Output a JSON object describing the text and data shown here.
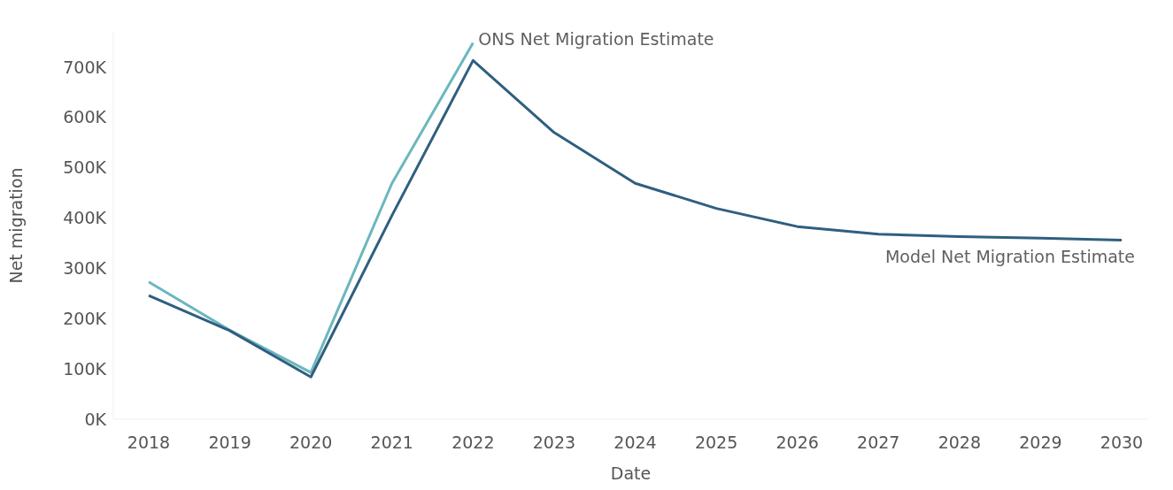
{
  "chart_data": {
    "type": "line",
    "xlabel": "Date",
    "ylabel": "Net migration",
    "categories": [
      "2018",
      "2019",
      "2020",
      "2021",
      "2022",
      "2023",
      "2024",
      "2025",
      "2026",
      "2027",
      "2028",
      "2029",
      "2030"
    ],
    "series": [
      {
        "name": "ONS Net Migration Estimate",
        "color": "#6bb7bd",
        "values": [
          273000,
          177000,
          93000,
          469000,
          748000,
          null,
          null,
          null,
          null,
          null,
          null,
          null,
          null
        ]
      },
      {
        "name": "Model Net Migration Estimate",
        "color": "#2f5f7f",
        "values": [
          246000,
          176000,
          84000,
          405000,
          713000,
          570000,
          469000,
          419000,
          383000,
          368000,
          363000,
          360000,
          356000
        ]
      }
    ],
    "ylim": [
      0,
      770000
    ],
    "yticks": [
      {
        "value": 0,
        "label": "0K"
      },
      {
        "value": 100000,
        "label": "100K"
      },
      {
        "value": 200000,
        "label": "200K"
      },
      {
        "value": 300000,
        "label": "300K"
      },
      {
        "value": 400000,
        "label": "400K"
      },
      {
        "value": 500000,
        "label": "500K"
      },
      {
        "value": 600000,
        "label": "600K"
      },
      {
        "value": 700000,
        "label": "700K"
      }
    ],
    "grid": false,
    "legend": false,
    "marker": "none",
    "line_style": "solid"
  }
}
